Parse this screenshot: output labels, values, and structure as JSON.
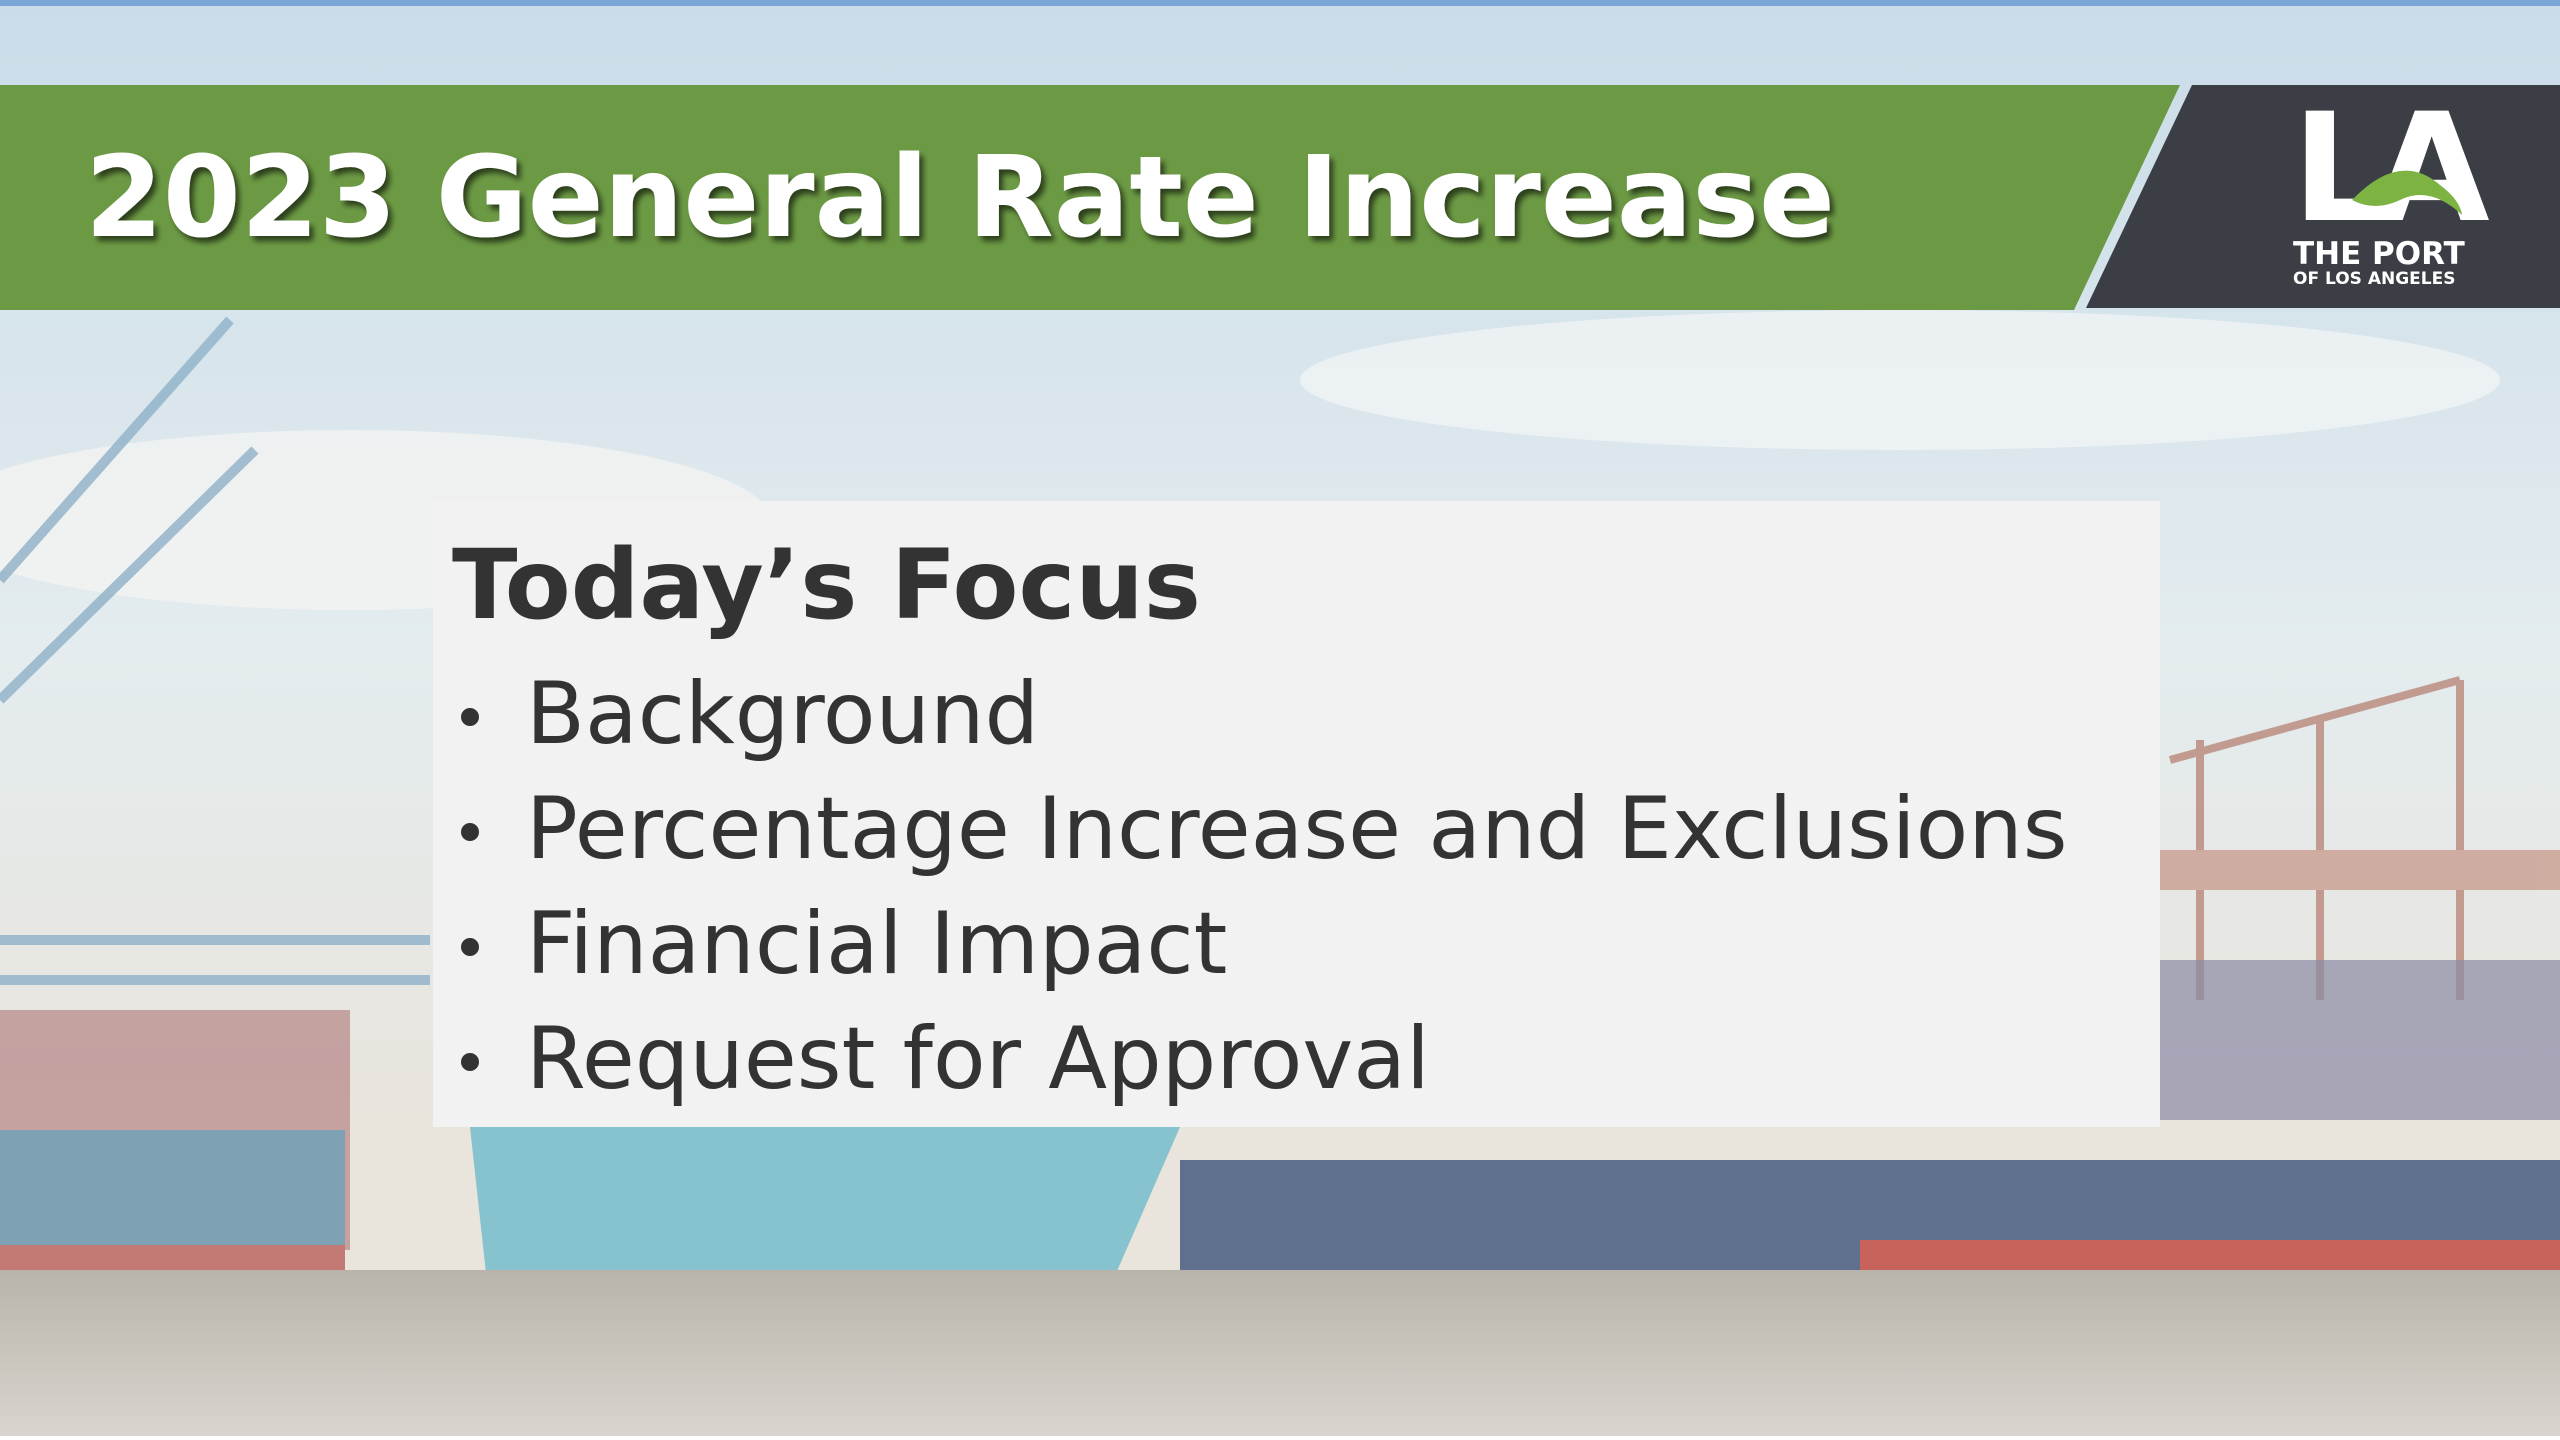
{
  "header": {
    "title": "2023 General Rate Increase"
  },
  "logo": {
    "mark": "LA",
    "line1": "THE PORT",
    "line2": "OF LOS ANGELES"
  },
  "focus": {
    "title": "Today’s Focus",
    "items": [
      "Background",
      "Percentage Increase and Exclusions",
      "Financial Impact",
      "Request for Approval"
    ]
  }
}
